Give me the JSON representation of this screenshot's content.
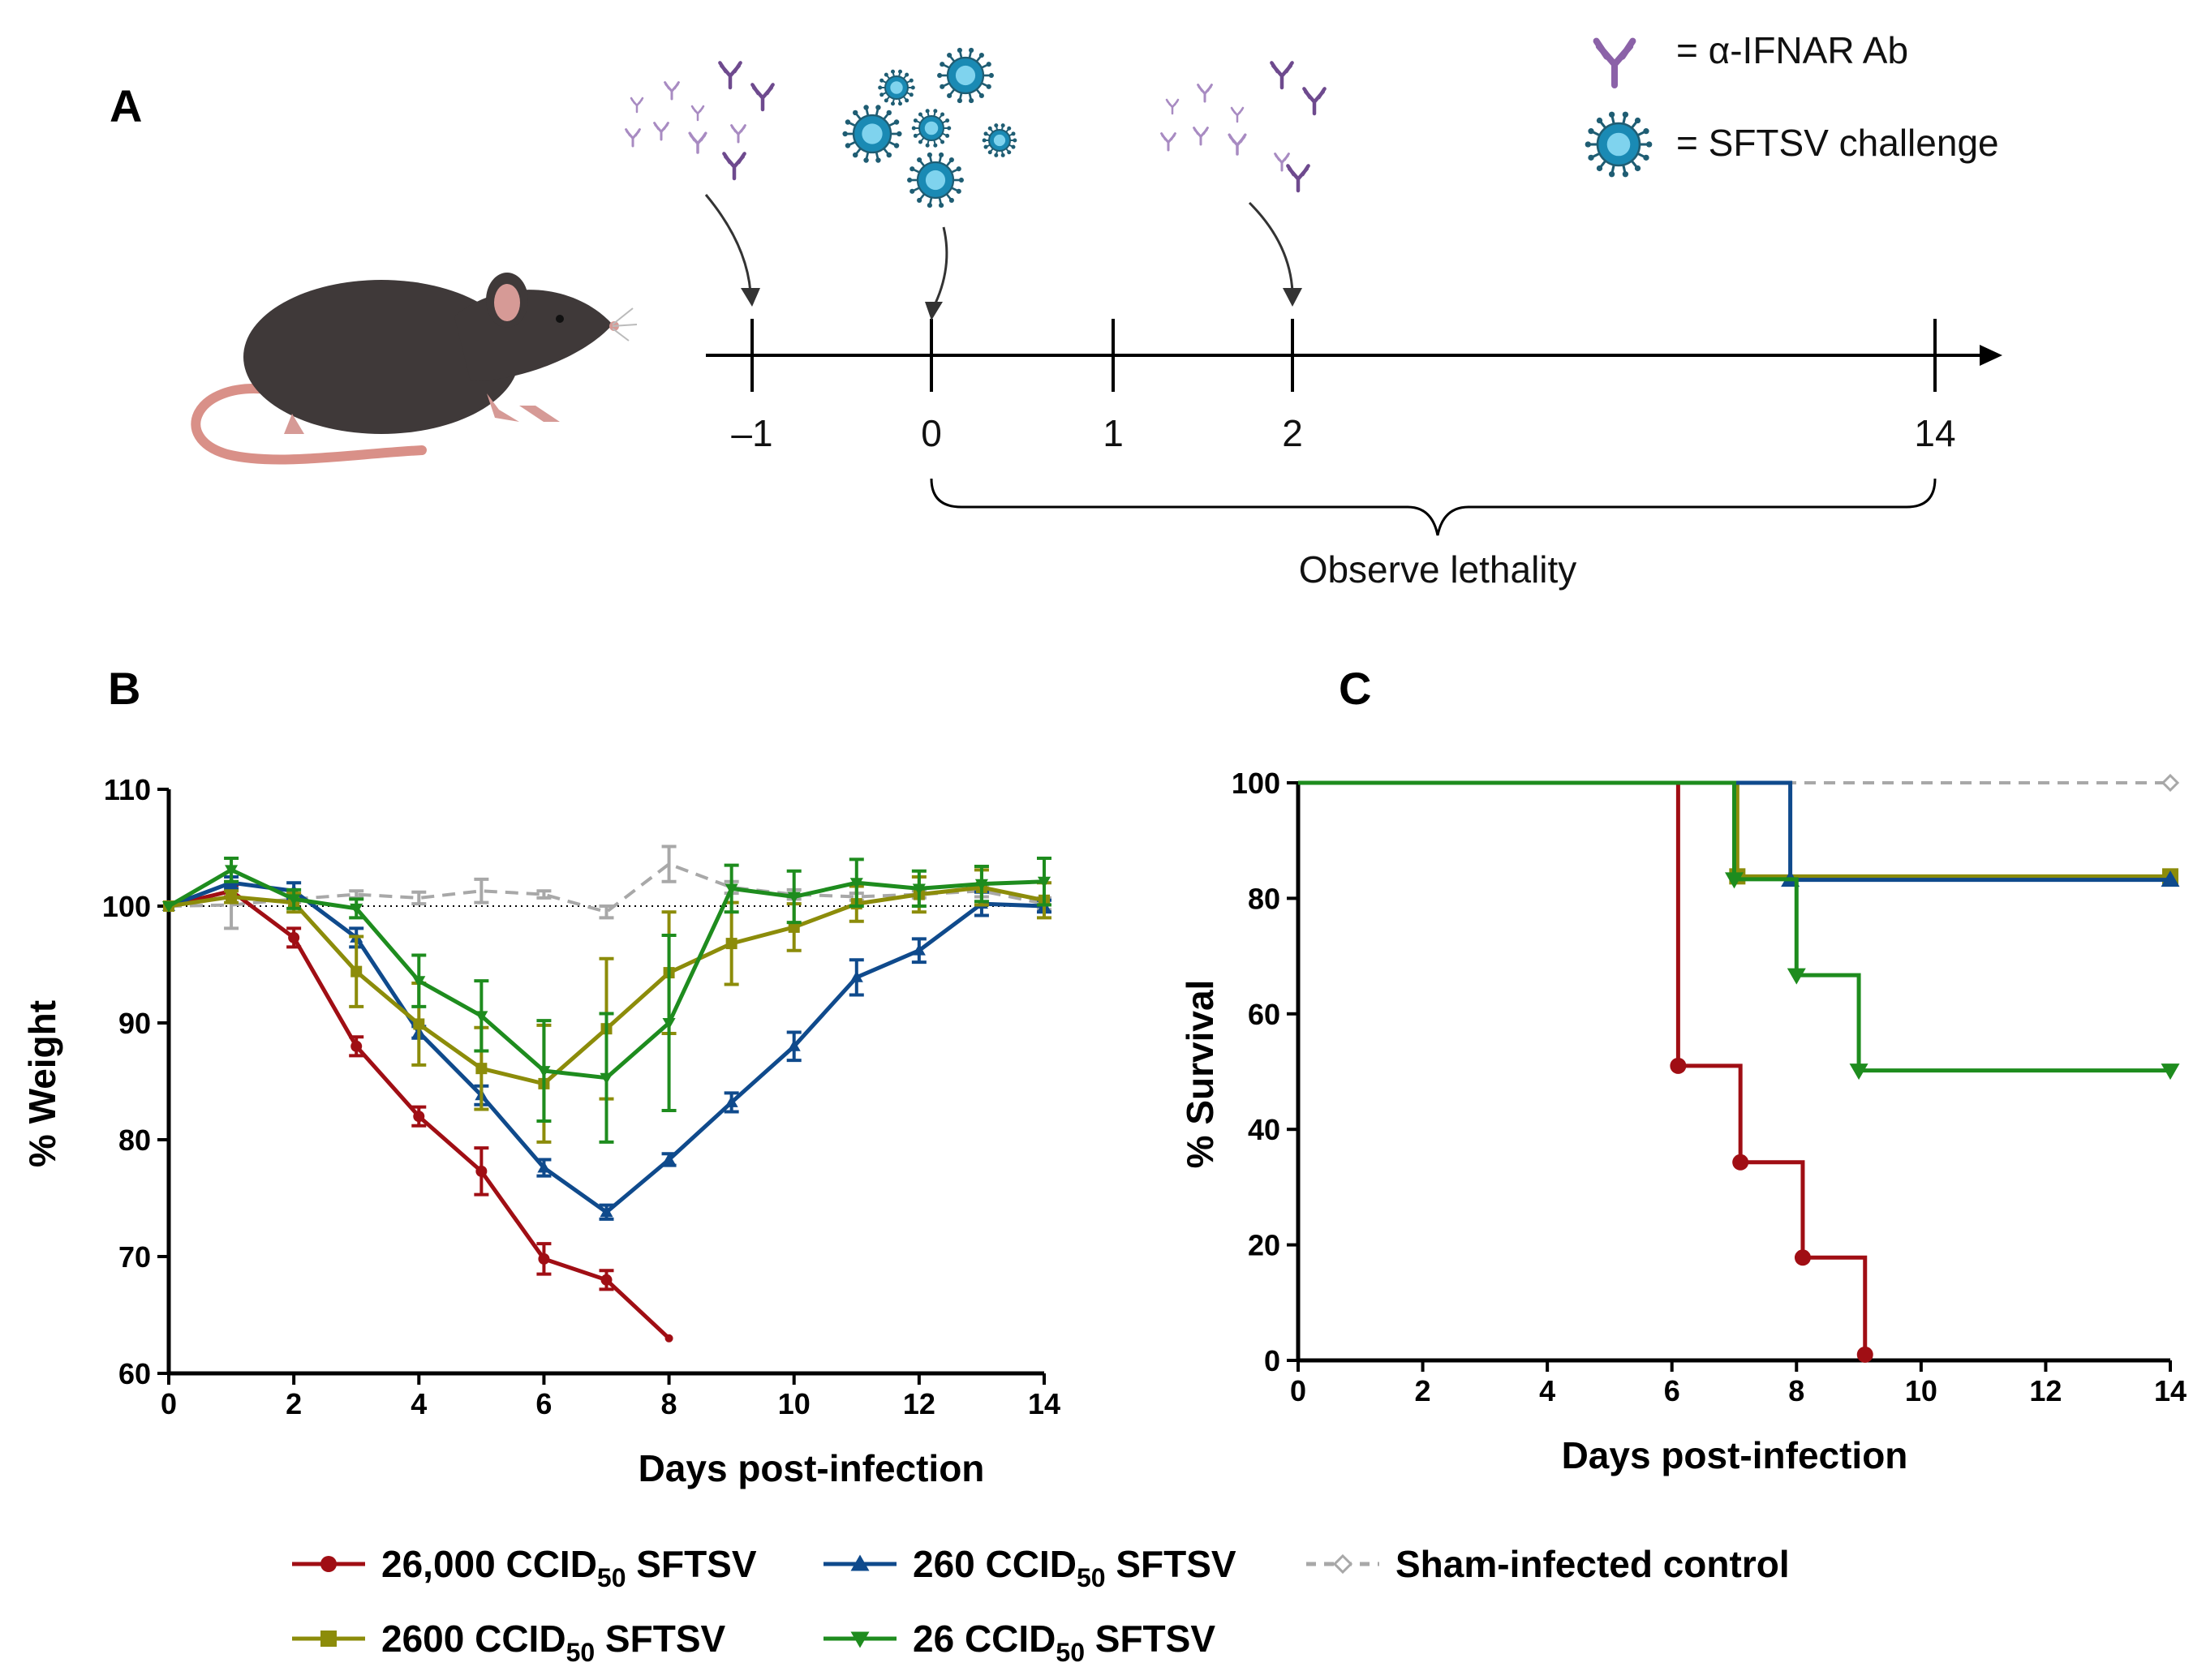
{
  "panels": {
    "a": "A",
    "b": "B",
    "c": "C"
  },
  "legend_key": {
    "antibody": "= α-IFNAR Ab",
    "virus": "= SFTSV challenge"
  },
  "timeline": {
    "days": [
      "–1",
      "0",
      "1",
      "2",
      "14"
    ],
    "observe_label": "Observe lethality"
  },
  "colors": {
    "c26000": "#A00E14",
    "c2600": "#8C8C0A",
    "c260": "#0F4A8C",
    "c26": "#1E8C1E",
    "sham": "#A8A8A8",
    "antibody": "#8B62A8",
    "virus": "#1A8AB4"
  },
  "legend": [
    {
      "key": "c26000",
      "prefix": "26,000 CCID",
      "sub": "50",
      "suffix": " SFTSV",
      "marker": "circle",
      "dashed": false
    },
    {
      "key": "c260",
      "prefix": "260 CCID",
      "sub": "50",
      "suffix": " SFTSV",
      "marker": "triangle-up",
      "dashed": false
    },
    {
      "key": "sham",
      "prefix": "Sham-infected control",
      "sub": "",
      "suffix": "",
      "marker": "diamond-open",
      "dashed": true
    },
    {
      "key": "c2600",
      "prefix": "2600 CCID",
      "sub": "50",
      "suffix": " SFTSV",
      "marker": "square",
      "dashed": false
    },
    {
      "key": "c26",
      "prefix": "26 CCID",
      "sub": "50",
      "suffix": " SFTSV",
      "marker": "triangle-down",
      "dashed": false
    }
  ],
  "chart_data": [
    {
      "id": "weight",
      "type": "line",
      "xlabel": "Days post-infection",
      "ylabel": "% Weight",
      "xlim": [
        0,
        14
      ],
      "ylim": [
        60,
        110
      ],
      "xticks": [
        0,
        2,
        4,
        6,
        8,
        10,
        12,
        14
      ],
      "yticks": [
        60,
        70,
        80,
        90,
        100,
        110
      ],
      "reference_line": 100,
      "series": [
        {
          "key": "sham",
          "name": "Sham-infected control",
          "x": [
            0,
            1,
            2,
            3,
            4,
            5,
            6,
            7,
            8,
            9,
            10,
            11,
            12,
            13,
            14
          ],
          "y": [
            100,
            100.1,
            100.6,
            101.0,
            100.7,
            101.3,
            101.0,
            99.5,
            103.6,
            101.6,
            101.0,
            100.8,
            101.0,
            101.3,
            100.2
          ],
          "err": [
            0,
            2.0,
            0.3,
            0.3,
            0.5,
            1.0,
            0.3,
            0.5,
            1.5,
            0.5,
            0.4,
            0.3,
            0.3,
            0.5,
            0.5
          ]
        },
        {
          "key": "c26000",
          "name": "26,000 CCID50 SFTSV",
          "x": [
            0,
            1,
            2,
            3,
            4,
            5,
            6,
            7,
            8
          ],
          "y": [
            100,
            101.3,
            97.3,
            88.0,
            82.0,
            77.3,
            69.8,
            68.0,
            63.0
          ],
          "err": [
            0,
            0.5,
            0.8,
            0.8,
            0.8,
            2.0,
            1.3,
            0.8,
            0
          ]
        },
        {
          "key": "c260",
          "name": "260 CCID50 SFTSV",
          "x": [
            0,
            1,
            2,
            3,
            4,
            5,
            6,
            7,
            8,
            9,
            10,
            11,
            12,
            13,
            14
          ],
          "y": [
            100,
            102.0,
            101.3,
            97.3,
            89.2,
            83.8,
            77.6,
            73.8,
            78.3,
            83.2,
            88.0,
            93.9,
            96.2,
            100.2,
            100.0
          ],
          "err": [
            0,
            0.5,
            0.7,
            0.8,
            0.5,
            0.8,
            0.7,
            0.6,
            0.5,
            0.8,
            1.2,
            1.5,
            1.0,
            1.0,
            0.5
          ]
        },
        {
          "key": "c2600",
          "name": "2600 CCID50 SFTSV",
          "x": [
            0,
            1,
            2,
            3,
            4,
            5,
            6,
            7,
            8,
            9,
            10,
            11,
            12,
            13,
            14
          ],
          "y": [
            100,
            100.8,
            100.3,
            94.4,
            89.9,
            86.1,
            84.8,
            89.5,
            94.3,
            96.8,
            98.2,
            100.2,
            101.0,
            101.6,
            100.5
          ],
          "err": [
            0,
            0.5,
            0.8,
            3.0,
            3.5,
            3.5,
            5.0,
            6.0,
            5.2,
            3.5,
            2.0,
            1.5,
            1.5,
            1.5,
            1.5
          ]
        },
        {
          "key": "c26",
          "name": "26 CCID50 SFTSV",
          "x": [
            0,
            1,
            2,
            3,
            4,
            5,
            6,
            7,
            8,
            9,
            10,
            11,
            12,
            13,
            14
          ],
          "y": [
            100,
            103.1,
            100.6,
            99.8,
            93.6,
            90.6,
            85.9,
            85.3,
            90.0,
            101.5,
            100.8,
            102.0,
            101.5,
            101.9,
            102.1
          ],
          "err": [
            0,
            1.0,
            0.8,
            0.8,
            2.2,
            3.0,
            4.3,
            5.5,
            7.5,
            2.0,
            2.2,
            2.0,
            1.5,
            1.5,
            2.0
          ]
        }
      ]
    },
    {
      "id": "survival",
      "type": "line",
      "xlabel": "Days post-infection",
      "ylabel": "% Survival",
      "xlim": [
        0,
        14
      ],
      "ylim": [
        0,
        100
      ],
      "xticks": [
        0,
        2,
        4,
        6,
        8,
        10,
        12,
        14
      ],
      "yticks": [
        0,
        20,
        40,
        60,
        80,
        100
      ],
      "series": [
        {
          "key": "sham",
          "name": "Sham-infected control",
          "steps": [
            [
              0,
              100
            ],
            [
              14,
              100
            ]
          ],
          "markers": [
            [
              14,
              100
            ]
          ]
        },
        {
          "key": "c26000",
          "name": "26,000 CCID50 SFTSV",
          "steps": [
            [
              0,
              100
            ],
            [
              6.1,
              100
            ],
            [
              6.1,
              51
            ],
            [
              7.1,
              51
            ],
            [
              7.1,
              34.3
            ],
            [
              8.1,
              34.3
            ],
            [
              8.1,
              17.8
            ],
            [
              9.1,
              17.8
            ],
            [
              9.1,
              1
            ]
          ],
          "markers": [
            [
              6.1,
              51
            ],
            [
              7.1,
              34.3
            ],
            [
              8.1,
              17.8
            ],
            [
              9.1,
              1
            ]
          ]
        },
        {
          "key": "c2600",
          "name": "2600 CCID50 SFTSV",
          "steps": [
            [
              0,
              100
            ],
            [
              7.05,
              100
            ],
            [
              7.05,
              83.8
            ],
            [
              14,
              83.8
            ]
          ],
          "markers": [
            [
              7.05,
              83.8
            ],
            [
              14,
              83.8
            ]
          ]
        },
        {
          "key": "c260",
          "name": "260 CCID50 SFTSV",
          "steps": [
            [
              0,
              100
            ],
            [
              7.9,
              100
            ],
            [
              7.9,
              83.2
            ],
            [
              14,
              83.2
            ]
          ],
          "markers": [
            [
              7.9,
              83.2
            ],
            [
              14,
              83.2
            ]
          ]
        },
        {
          "key": "c26",
          "name": "26 CCID50 SFTSV",
          "steps": [
            [
              0,
              100
            ],
            [
              7.0,
              100
            ],
            [
              7.0,
              83.3
            ],
            [
              8.0,
              83.3
            ],
            [
              8.0,
              66.7
            ],
            [
              9.0,
              66.7
            ],
            [
              9.0,
              50.2
            ],
            [
              14,
              50.2
            ]
          ],
          "markers": [
            [
              7.0,
              83.3
            ],
            [
              8.0,
              66.7
            ],
            [
              9.0,
              50.2
            ],
            [
              14,
              50.2
            ]
          ]
        }
      ]
    }
  ]
}
